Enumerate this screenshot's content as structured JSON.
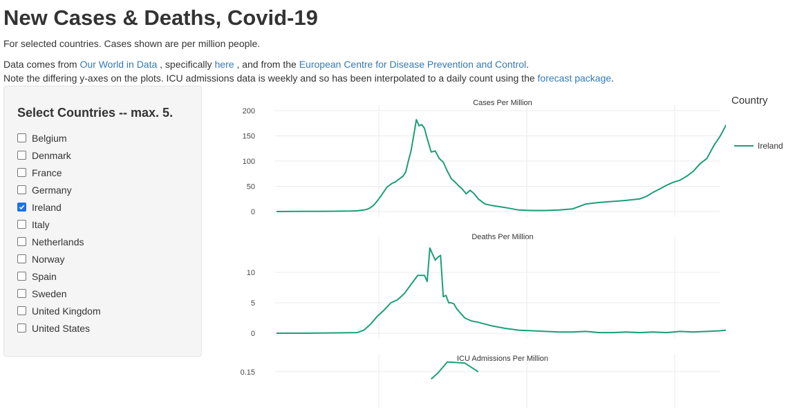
{
  "page": {
    "title": "New Cases & Deaths, Covid-19",
    "subtitle": "For selected countries. Cases shown are per million people.",
    "source_text_1": "Data comes from",
    "source_link_1": "Our World in Data",
    "source_text_2": ", specifically",
    "source_link_2": "here",
    "source_text_3": ", and from the",
    "source_link_3": "European Centre for Disease Prevention and Control",
    "source_text_4": ".",
    "note_text": "Note the differing y-axes on the plots. ICU admissions data is weekly and so has been interpolated to a daily count using the",
    "note_link": "forecast package",
    "note_end": "."
  },
  "sidebar": {
    "title": "Select Countries -- max. 5.",
    "countries": [
      {
        "label": "Belgium",
        "checked": false
      },
      {
        "label": "Denmark",
        "checked": false
      },
      {
        "label": "France",
        "checked": false
      },
      {
        "label": "Germany",
        "checked": false
      },
      {
        "label": "Ireland",
        "checked": true
      },
      {
        "label": "Italy",
        "checked": false
      },
      {
        "label": "Netherlands",
        "checked": false
      },
      {
        "label": "Norway",
        "checked": false
      },
      {
        "label": "Spain",
        "checked": false
      },
      {
        "label": "Sweden",
        "checked": false
      },
      {
        "label": "United Kingdom",
        "checked": false
      },
      {
        "label": "United States",
        "checked": false
      }
    ]
  },
  "legend": {
    "title": "Country",
    "items": [
      {
        "name": "Ireland",
        "color": "#1b9e77"
      }
    ]
  },
  "chart_data": [
    {
      "type": "line",
      "title": "Cases Per Million",
      "ylim": [
        0,
        200
      ],
      "yticks": [
        0,
        50,
        100,
        150,
        200
      ],
      "xlim": [
        0,
        330
      ],
      "grid": true,
      "series": [
        {
          "name": "Ireland",
          "color": "#1b9e77",
          "x": [
            0,
            10,
            20,
            30,
            40,
            50,
            55,
            60,
            65,
            68,
            70,
            72,
            74,
            76,
            78,
            80,
            82,
            84,
            86,
            88,
            90,
            92,
            94,
            96,
            98,
            100,
            102,
            104,
            106,
            108,
            110,
            112,
            115,
            118,
            121,
            124,
            127,
            130,
            133,
            135,
            138,
            141,
            144,
            147,
            150,
            155,
            160,
            170,
            180,
            190,
            200,
            210,
            220,
            230,
            240,
            250,
            260,
            270,
            275,
            280,
            285,
            290,
            295,
            300,
            305,
            310,
            315,
            320,
            325,
            330,
            335,
            338
          ],
          "y": [
            0,
            0.2,
            0.3,
            0.4,
            0.5,
            0.8,
            1,
            1.5,
            3,
            5,
            8,
            12,
            18,
            25,
            32,
            40,
            48,
            52,
            56,
            58,
            62,
            66,
            70,
            78,
            100,
            120,
            150,
            182,
            170,
            172,
            165,
            145,
            118,
            120,
            105,
            98,
            80,
            65,
            58,
            52,
            45,
            35,
            42,
            35,
            25,
            15,
            12,
            8,
            3,
            2,
            2,
            3,
            5,
            15,
            18,
            20,
            22,
            25,
            30,
            38,
            45,
            52,
            58,
            62,
            70,
            80,
            95,
            105,
            130,
            150,
            175,
            195
          ]
        }
      ]
    },
    {
      "type": "line",
      "title": "Deaths Per Million",
      "ylim": [
        0,
        15
      ],
      "yticks": [
        0,
        5,
        10
      ],
      "xlim": [
        0,
        330
      ],
      "grid": true,
      "series": [
        {
          "name": "Ireland",
          "color": "#1b9e77",
          "x": [
            0,
            20,
            40,
            60,
            65,
            70,
            75,
            80,
            85,
            90,
            95,
            100,
            105,
            110,
            112,
            114,
            116,
            118,
            120,
            122,
            124,
            126,
            128,
            130,
            132,
            134,
            136,
            140,
            145,
            150,
            155,
            160,
            170,
            180,
            190,
            200,
            210,
            220,
            230,
            240,
            250,
            260,
            270,
            280,
            290,
            300,
            310,
            320,
            330,
            338
          ],
          "y": [
            0,
            0,
            0.05,
            0.1,
            0.5,
            1.5,
            2.8,
            3.8,
            5,
            5.5,
            6.5,
            8,
            9.5,
            9.5,
            8.5,
            14,
            13,
            12,
            12.5,
            12.8,
            6,
            6.2,
            5,
            5,
            4.8,
            4,
            3.5,
            2.5,
            2,
            1.8,
            1.5,
            1.2,
            0.8,
            0.5,
            0.4,
            0.3,
            0.2,
            0.2,
            0.3,
            0.1,
            0.1,
            0.2,
            0.1,
            0.2,
            0.1,
            0.3,
            0.2,
            0.3,
            0.4,
            0.6
          ]
        }
      ]
    },
    {
      "type": "line",
      "title": "ICU Admissions Per Million",
      "ylim": [
        0,
        0.2
      ],
      "yticks": [
        0.15
      ],
      "xlim": [
        0,
        330
      ],
      "grid": true,
      "series": [
        {
          "name": "Ireland",
          "color": "#1b9e77",
          "x": [
            115,
            120,
            127,
            140,
            150
          ],
          "y": [
            0.12,
            0.145,
            0.19,
            0.185,
            0.15
          ]
        }
      ]
    }
  ]
}
